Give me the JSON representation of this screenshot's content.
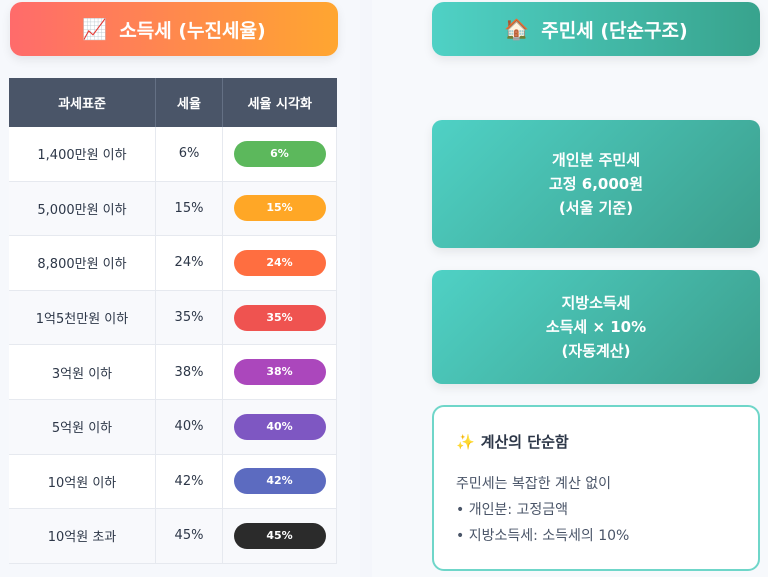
{
  "left": {
    "title": "소득세 (누진세율)",
    "icon": "chart-increasing-icon",
    "table": {
      "headers": [
        "과세표준",
        "세율",
        "세율 시각화"
      ],
      "rows": [
        {
          "bracket": "1,400만원 이하",
          "rate": "6%",
          "bar": "6%",
          "color": "#5cb85c"
        },
        {
          "bracket": "5,000만원 이하",
          "rate": "15%",
          "bar": "15%",
          "color": "#ffa726"
        },
        {
          "bracket": "8,800만원 이하",
          "rate": "24%",
          "bar": "24%",
          "color": "#ff6e40"
        },
        {
          "bracket": "1억5천만원 이하",
          "rate": "35%",
          "bar": "35%",
          "color": "#ef5350"
        },
        {
          "bracket": "3억원 이하",
          "rate": "38%",
          "bar": "38%",
          "color": "#ab47bc"
        },
        {
          "bracket": "5억원 이하",
          "rate": "40%",
          "bar": "40%",
          "color": "#7e57c2"
        },
        {
          "bracket": "10억원 이하",
          "rate": "42%",
          "bar": "42%",
          "color": "#5c6bc0"
        },
        {
          "bracket": "10억원 초과",
          "rate": "45%",
          "bar": "45%",
          "color": "#2b2b2b"
        }
      ]
    }
  },
  "right": {
    "title": "주민세 (단순구조)",
    "icon": "house-icon",
    "card1": {
      "line1": "개인분 주민세",
      "line2": "고정 6,000원",
      "line3": "(서울 기준)"
    },
    "card2": {
      "line1": "지방소득세",
      "line2": "소득세 × 10%",
      "line3": "(자동계산)"
    },
    "note": {
      "title": "계산의 단순함",
      "icon": "sparkles-icon",
      "lines": [
        "주민세는 복잡한 계산 없이",
        "• 개인분: 고정금액",
        "• 지방소득세: 소득세의 10%"
      ]
    }
  }
}
